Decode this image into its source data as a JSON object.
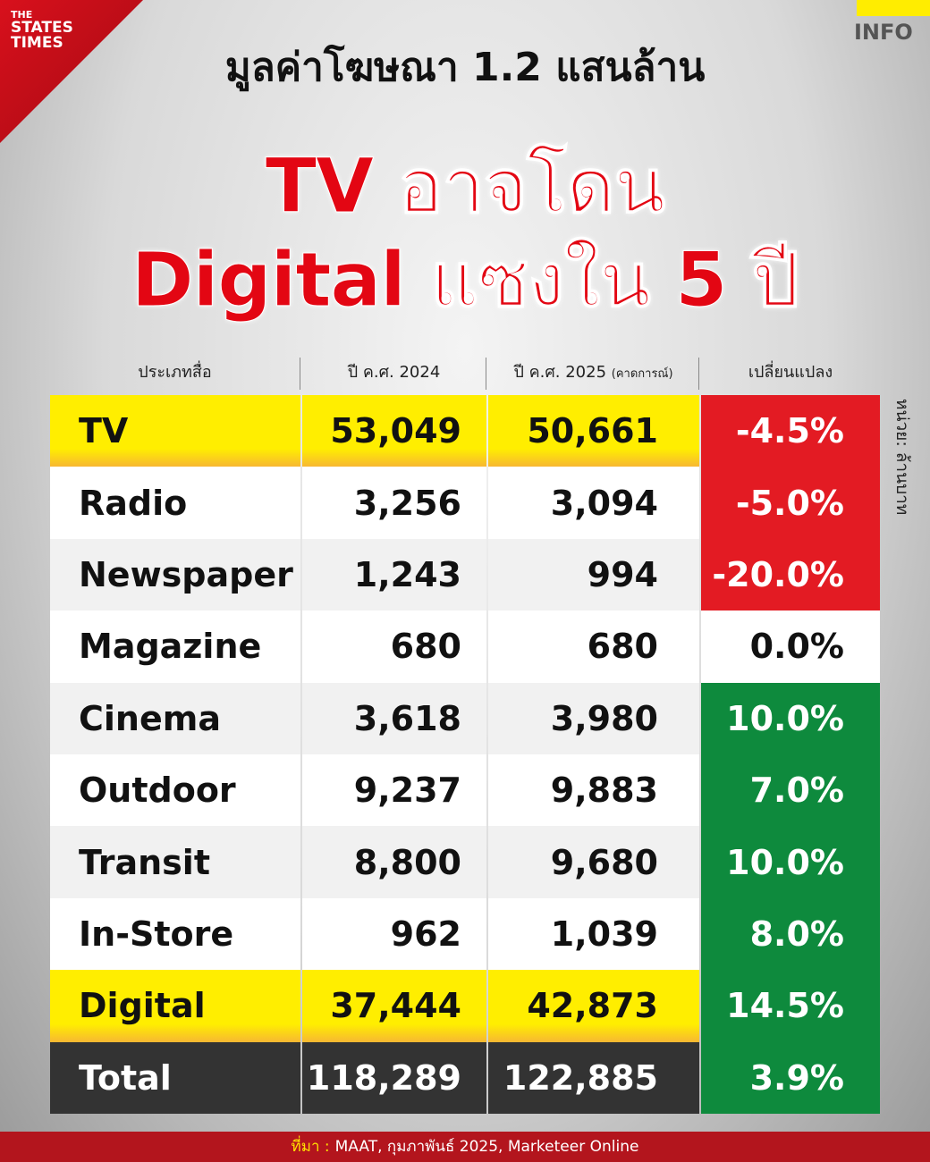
{
  "header": {
    "brand_lines": [
      "THE",
      "STATES",
      "TIMES"
    ],
    "tag": "INFO",
    "kicker": "มูลค่าโฆษณา 1.2 แสนล้าน",
    "headline_lines": [
      "TV อาจโดน",
      "Digital แซงใน 5 ปี"
    ]
  },
  "table": {
    "columns": [
      "ประเภทสื่อ",
      "ปี ค.ศ. 2024",
      "ปี ค.ศ. 2025",
      "เปลี่ยนแปลง"
    ],
    "column_note": "(คาดการณ์)",
    "unit": "หน่วย: ล้านบาท",
    "rows": [
      [
        "TV",
        "53,049",
        "50,661",
        "-4.5%"
      ],
      [
        "Radio",
        "3,256",
        "3,094",
        "-5.0%"
      ],
      [
        "Newspaper",
        "1,243",
        "994",
        "-20.0%"
      ],
      [
        "Magazine",
        "680",
        "680",
        "0.0%"
      ],
      [
        "Cinema",
        "3,618",
        "3,980",
        "10.0%"
      ],
      [
        "Outdoor",
        "9,237",
        "9,883",
        "7.0%"
      ],
      [
        "Transit",
        "8,800",
        "9,680",
        "10.0%"
      ],
      [
        "In-Store",
        "962",
        "1,039",
        "8.0%"
      ],
      [
        "Digital",
        "37,444",
        "42,873",
        "14.5%"
      ],
      [
        "Total",
        "118,289",
        "122,885",
        "3.9%"
      ]
    ]
  },
  "footer": {
    "source_label": "ที่มา :",
    "source": "MAAT, กุมภาพันธ์ 2025, Marketeer Online"
  }
}
